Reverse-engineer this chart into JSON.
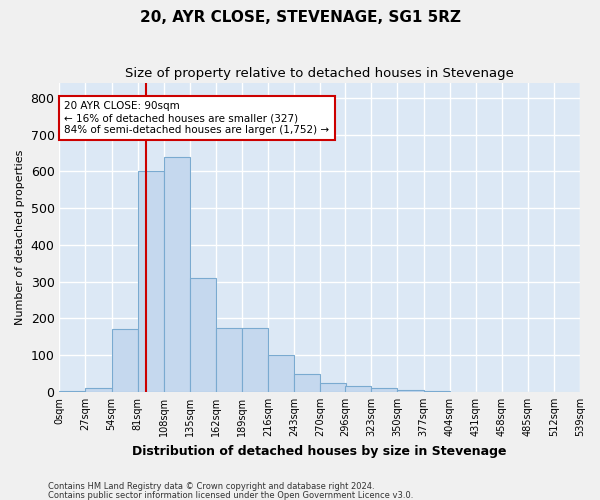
{
  "title": "20, AYR CLOSE, STEVENAGE, SG1 5RZ",
  "subtitle": "Size of property relative to detached houses in Stevenage",
  "xlabel": "Distribution of detached houses by size in Stevenage",
  "ylabel": "Number of detached properties",
  "bin_edges": [
    0,
    27,
    54,
    81,
    108,
    135,
    162,
    189,
    216,
    243,
    270,
    296,
    323,
    350,
    377,
    404,
    431,
    458,
    485,
    512,
    539
  ],
  "bar_heights": [
    3,
    10,
    170,
    600,
    640,
    310,
    175,
    175,
    100,
    50,
    25,
    15,
    10,
    5,
    3,
    1,
    0,
    0,
    1,
    0
  ],
  "bar_color": "#c5d8ee",
  "bar_edge_color": "#7aaad0",
  "property_size": 90,
  "red_line_color": "#cc0000",
  "annotation_text": "20 AYR CLOSE: 90sqm\n← 16% of detached houses are smaller (327)\n84% of semi-detached houses are larger (1,752) →",
  "annotation_box_color": "#ffffff",
  "annotation_box_edge": "#cc0000",
  "ylim": [
    0,
    840
  ],
  "yticks": [
    0,
    100,
    200,
    300,
    400,
    500,
    600,
    700,
    800
  ],
  "bg_color": "#dce8f5",
  "grid_color": "#ffffff",
  "footer_line1": "Contains HM Land Registry data © Crown copyright and database right 2024.",
  "footer_line2": "Contains public sector information licensed under the Open Government Licence v3.0.",
  "title_fontsize": 11,
  "subtitle_fontsize": 9.5,
  "tick_label_fontsize": 7,
  "ylabel_fontsize": 8,
  "xlabel_fontsize": 9
}
